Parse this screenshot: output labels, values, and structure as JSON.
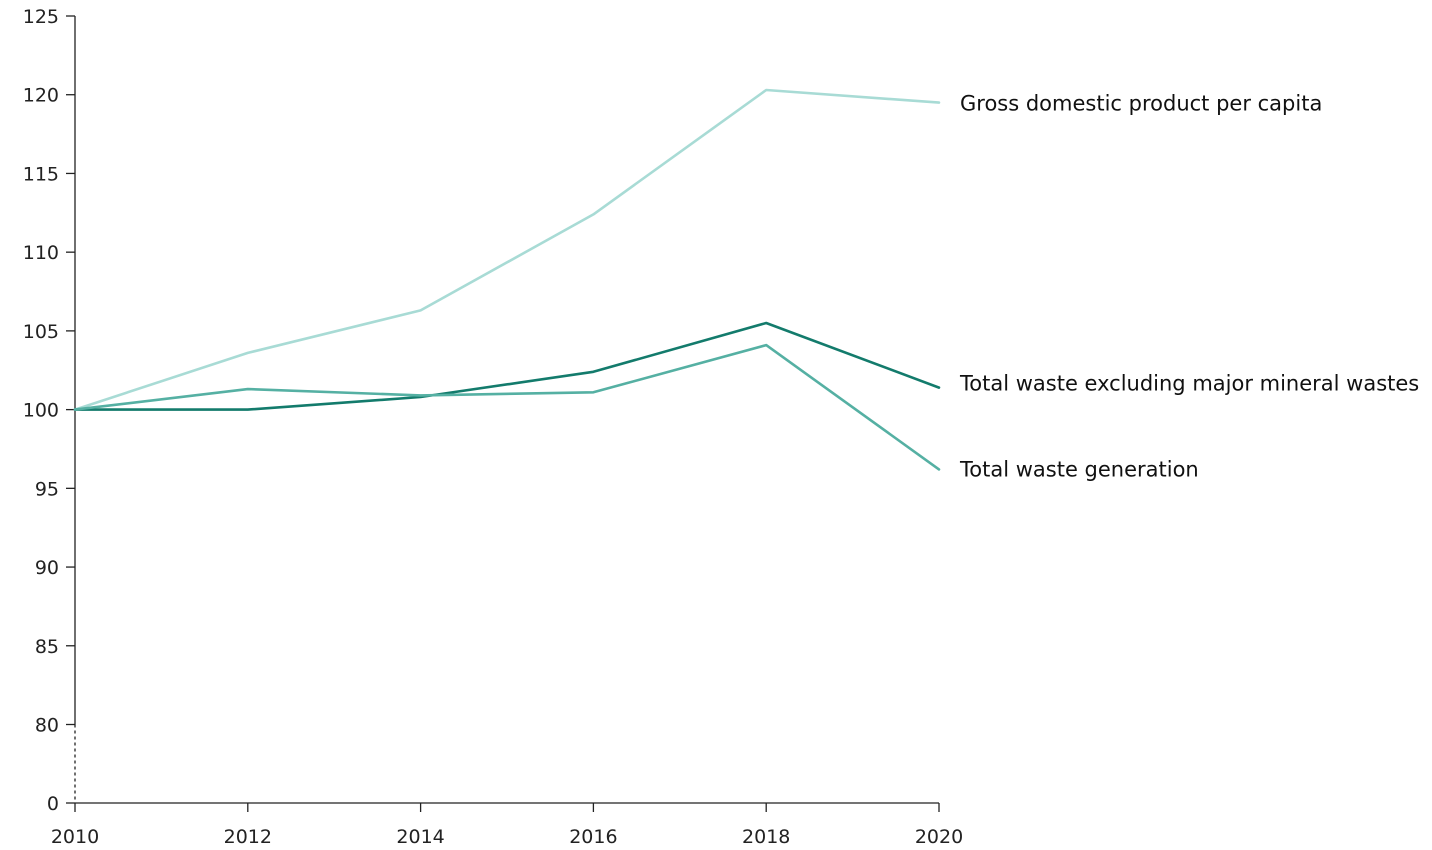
{
  "chart_data": {
    "type": "line",
    "title": "",
    "xlabel": "",
    "ylabel": "",
    "x": [
      2010,
      2012,
      2014,
      2016,
      2018,
      2020
    ],
    "x_tick_labels": [
      "2010",
      "2012",
      "2014",
      "2016",
      "2018",
      "2020"
    ],
    "y_tick_labels": [
      "0",
      "80",
      "85",
      "90",
      "95",
      "100",
      "105",
      "110",
      "115",
      "120",
      "125"
    ],
    "y_axis_break": "between 0 and 80",
    "ylim": [
      80,
      125
    ],
    "grid": false,
    "legend": "labels at line ends, right",
    "series": [
      {
        "name": "Gross domestic product per capita",
        "color": "#a8dbd5",
        "values": [
          100,
          103.6,
          106.3,
          112.4,
          120.3,
          119.5
        ]
      },
      {
        "name": "Total waste excluding major mineral wastes",
        "color": "#137b6c",
        "values": [
          100,
          100,
          100.8,
          102.4,
          105.5,
          101.4
        ]
      },
      {
        "name": "Total waste generation",
        "color": "#55b0a3",
        "values": [
          100,
          101.3,
          100.9,
          101.1,
          104.1,
          96.2
        ]
      }
    ]
  }
}
